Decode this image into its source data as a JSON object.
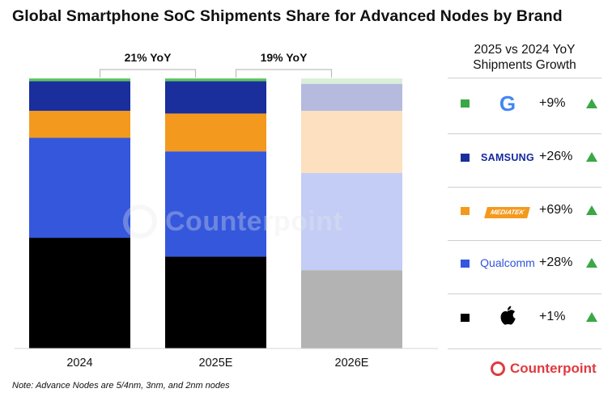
{
  "title": "Global Smartphone SoC Shipments Share for Advanced Nodes by Brand",
  "note": "Note: Advance Nodes are 5/4nm, 3nm, and 2nm nodes",
  "watermark": "Counterpoint",
  "footer_logo": "Counterpoint",
  "legend": {
    "title_line1": "2025 vs 2024 YoY",
    "title_line2": "Shipments Growth",
    "rows": [
      {
        "brand": "Google",
        "brand_text": "G",
        "growth": "+9%",
        "color": "#3aa845"
      },
      {
        "brand": "Samsung",
        "brand_text": "SAMSUNG",
        "growth": "+26%",
        "color": "#1a2f9c"
      },
      {
        "brand": "MediaTek",
        "brand_text": "MEDIATEK",
        "growth": "+69%",
        "color": "#f39a1e"
      },
      {
        "brand": "Qualcomm",
        "brand_text": "Qualcomm",
        "growth": "+28%",
        "color": "#3457dc"
      },
      {
        "brand": "Apple",
        "brand_text": "",
        "growth": "+1%",
        "color": "#000000"
      }
    ]
  },
  "chart_data": {
    "type": "bar",
    "stacked": true,
    "title": "Global Smartphone SoC Shipments Share for Advanced Nodes by Brand",
    "categories": [
      "2024",
      "2025E",
      "2026E"
    ],
    "ylim": [
      0,
      100
    ],
    "series": [
      {
        "name": "Apple",
        "values": [
          41,
          34,
          29
        ],
        "colors": [
          "#000000",
          "#000000",
          "#b3b3b3"
        ]
      },
      {
        "name": "Qualcomm",
        "values": [
          37,
          39,
          36
        ],
        "colors": [
          "#3457dc",
          "#3457dc",
          "#c3cdf5"
        ]
      },
      {
        "name": "MediaTek",
        "values": [
          10,
          14,
          23
        ],
        "colors": [
          "#f39a1e",
          "#f39a1e",
          "#fce0c0"
        ]
      },
      {
        "name": "Samsung",
        "values": [
          11,
          12,
          10
        ],
        "colors": [
          "#1a2f9c",
          "#1a2f9c",
          "#b5bade"
        ]
      },
      {
        "name": "Google",
        "values": [
          1,
          1,
          2
        ],
        "colors": [
          "#5cc65e",
          "#5cc65e",
          "#d9f0d8"
        ]
      }
    ],
    "annotations": [
      {
        "text": "21% YoY",
        "from": "2024",
        "to": "2025E"
      },
      {
        "text": "19% YoY",
        "from": "2025E",
        "to": "2026E"
      }
    ]
  }
}
